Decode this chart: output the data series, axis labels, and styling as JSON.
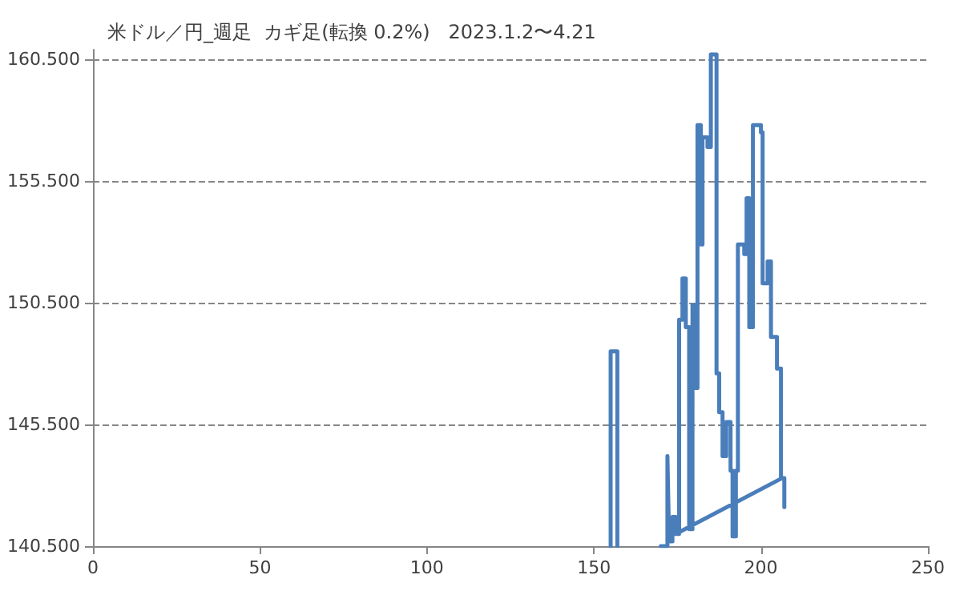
{
  "chart_data": {
    "type": "line",
    "title": "米ドル／円_週足  カギ足(転換 0.2%)   2023.1.2〜4.21",
    "xlim": [
      0,
      250
    ],
    "xticks": [
      0,
      50,
      100,
      150,
      200,
      250
    ],
    "ylim": [
      140.5,
      160.9
    ],
    "yticks": [
      {
        "value": 140.5,
        "label": "140.500"
      },
      {
        "value": 145.5,
        "label": "145.500"
      },
      {
        "value": 150.5,
        "label": "150.500"
      },
      {
        "value": 155.5,
        "label": "155.500"
      },
      {
        "value": 160.5,
        "label": "160.500"
      }
    ],
    "grid": "y",
    "marker": "none",
    "line_style": "solid",
    "series": [
      {
        "color": "#4a7ebb",
        "x": [
          155,
          155,
          157,
          157,
          null,
          170,
          172,
          172,
          172.5,
          173.5,
          173.5,
          174.5,
          174.5,
          175.5,
          175.5,
          176.5,
          176.5,
          177.5,
          177.5,
          178.5,
          178.5,
          179.5,
          179.5,
          180,
          180,
          181,
          181,
          182,
          182,
          182.5,
          182.5,
          184,
          184,
          185,
          185,
          186.7,
          186.7,
          187.5,
          187.5,
          188.5,
          188.5,
          189.6,
          189.6,
          190.9,
          190.9,
          191.5,
          191.5,
          192.5,
          192.5,
          193.1,
          193.1,
          195,
          195,
          195.7,
          195.7,
          196.5,
          196.5,
          197.6,
          197.6,
          200,
          200,
          200.5,
          200.5,
          202,
          202,
          203,
          203,
          204.8,
          204.8,
          206,
          206,
          207,
          207,
          null,
          174.5,
          206.4
        ],
        "values": [
          140.5,
          148.5,
          148.5,
          140.5,
          null,
          140.5,
          140.5,
          144.2,
          140.7,
          140.7,
          141.7,
          141.7,
          141,
          141,
          149.8,
          149.8,
          151.5,
          151.5,
          149.5,
          149.5,
          141.2,
          141.2,
          150.4,
          150.4,
          147,
          147,
          157.8,
          157.8,
          152.9,
          152.9,
          157.3,
          157.3,
          156.9,
          156.9,
          160.7,
          160.7,
          147.6,
          147.6,
          146,
          146,
          144.2,
          144.2,
          145.6,
          145.6,
          143.6,
          143.6,
          140.9,
          140.9,
          143.6,
          143.6,
          152.9,
          152.9,
          152.5,
          152.5,
          154.8,
          154.8,
          149.5,
          149.5,
          157.8,
          157.8,
          157.5,
          157.5,
          151.3,
          151.3,
          152.2,
          152.2,
          149.1,
          149.1,
          147.8,
          147.8,
          143.3,
          143.3,
          142.1,
          null,
          141,
          143.3
        ]
      }
    ]
  }
}
